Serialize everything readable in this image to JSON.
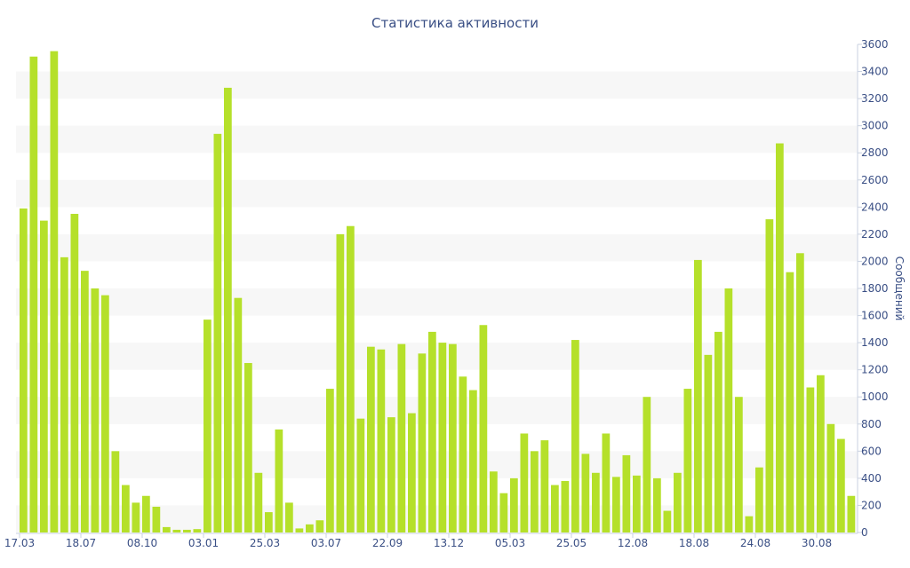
{
  "chart_data": {
    "type": "bar",
    "title": "Статистика активности",
    "ylabel": "Сообщений",
    "ylim": [
      0,
      3600
    ],
    "y_ticks": [
      0,
      200,
      400,
      600,
      800,
      1000,
      1200,
      1400,
      1600,
      1800,
      2000,
      2200,
      2400,
      2600,
      2800,
      3000,
      3200,
      3400,
      3600
    ],
    "x_tick_labels": [
      {
        "index": 0,
        "label": "17.03"
      },
      {
        "index": 6,
        "label": "18.07"
      },
      {
        "index": 12,
        "label": "08.10"
      },
      {
        "index": 18,
        "label": "03.01"
      },
      {
        "index": 24,
        "label": "25.03"
      },
      {
        "index": 30,
        "label": "03.07"
      },
      {
        "index": 36,
        "label": "22.09"
      },
      {
        "index": 42,
        "label": "13.12"
      },
      {
        "index": 48,
        "label": "05.03"
      },
      {
        "index": 54,
        "label": "25.05"
      },
      {
        "index": 60,
        "label": "12.08"
      },
      {
        "index": 66,
        "label": "18.08"
      },
      {
        "index": 72,
        "label": "24.08"
      },
      {
        "index": 78,
        "label": "30.08"
      }
    ],
    "bar_color": "#b5e02a",
    "grid": "alternating horizontal bands",
    "values": [
      2390,
      3510,
      2300,
      3550,
      2030,
      2350,
      1930,
      1800,
      1750,
      600,
      350,
      220,
      270,
      190,
      40,
      20,
      20,
      25,
      1570,
      2940,
      3280,
      1730,
      1250,
      440,
      150,
      760,
      220,
      30,
      60,
      90,
      1060,
      2200,
      2260,
      840,
      1370,
      1350,
      850,
      1390,
      880,
      1320,
      1480,
      1400,
      1390,
      1150,
      1050,
      1530,
      450,
      290,
      400,
      730,
      600,
      680,
      350,
      380,
      1420,
      580,
      440,
      730,
      410,
      570,
      420,
      1000,
      400,
      160,
      440,
      1060,
      2010,
      1310,
      1480,
      1800,
      1000,
      120,
      480,
      2310,
      2870,
      1920,
      2060,
      1070,
      1160,
      800,
      690,
      270
    ]
  }
}
